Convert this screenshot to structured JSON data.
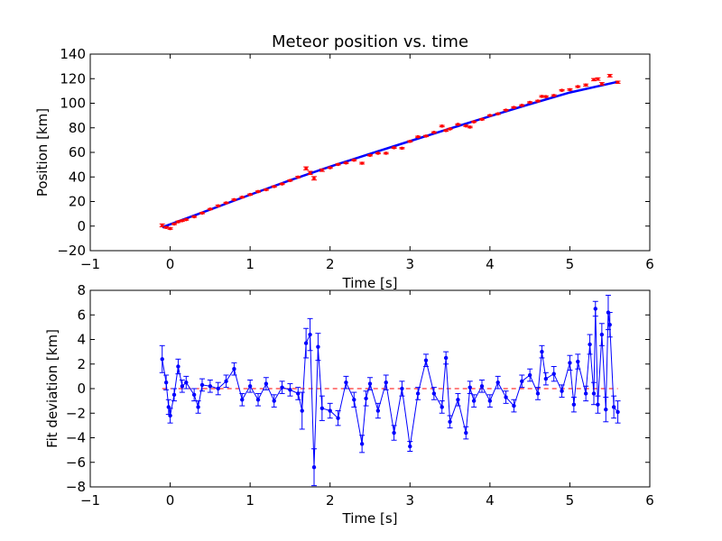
{
  "chart_data": [
    {
      "type": "scatter",
      "title": "Meteor position vs. time",
      "xlabel": "Time [s]",
      "ylabel": "Position [km]",
      "xlim": [
        -1,
        6
      ],
      "ylim": [
        -20,
        140
      ],
      "xticks": [
        -1,
        0,
        1,
        2,
        3,
        4,
        5,
        6
      ],
      "yticks": [
        -20,
        0,
        20,
        40,
        60,
        80,
        100,
        120,
        140
      ],
      "xtick_labels": [
        "−1",
        "0",
        "1",
        "2",
        "3",
        "4",
        "5",
        "6"
      ],
      "ytick_labels": [
        "−20",
        "0",
        "20",
        "40",
        "60",
        "80",
        "100",
        "120",
        "140"
      ],
      "grid": false,
      "colors": {
        "points": "#ff0000",
        "fit": "#0000ff"
      },
      "series": [
        {
          "kind": "points-with-errorbars",
          "x": [
            -0.1,
            -0.05,
            0.0,
            0.05,
            0.1,
            0.15,
            0.2,
            0.3,
            0.4,
            0.5,
            0.6,
            0.7,
            0.8,
            0.9,
            1.0,
            1.1,
            1.2,
            1.3,
            1.4,
            1.5,
            1.6,
            1.7,
            1.75,
            1.8,
            1.9,
            2.0,
            2.1,
            2.2,
            2.3,
            2.4,
            2.5,
            2.6,
            2.7,
            2.8,
            2.9,
            3.0,
            3.1,
            3.2,
            3.3,
            3.4,
            3.45,
            3.5,
            3.6,
            3.7,
            3.75,
            3.8,
            3.9,
            4.0,
            4.1,
            4.2,
            4.3,
            4.4,
            4.5,
            4.6,
            4.65,
            4.7,
            4.8,
            4.9,
            5.0,
            5.1,
            5.2,
            5.3,
            5.35,
            5.4,
            5.5,
            5.6
          ],
          "y": [
            0.6,
            -1.1,
            -2.0,
            1.7,
            3.5,
            4.4,
            5.3,
            7.6,
            10.6,
            13.8,
            16.5,
            18.9,
            21.5,
            23.5,
            25.7,
            28.1,
            29.6,
            32.2,
            34.3,
            37.1,
            39.9,
            47.0,
            43.3,
            38.9,
            45.5,
            47.5,
            50.2,
            51.4,
            53.7,
            51.2,
            57.6,
            59.3,
            59.3,
            63.8,
            63.4,
            69.0,
            72.7,
            73.3,
            76.3,
            81.4,
            77.8,
            79.1,
            82.8,
            81.6,
            80.6,
            84.9,
            86.9,
            90.1,
            91.4,
            94.4,
            96.6,
            98.3,
            100.7,
            101.8,
            105.6,
            105.4,
            106.3,
            110.5,
            111.1,
            113.5,
            114.8,
            119.2,
            119.7,
            115.8,
            122.4,
            117.1
          ],
          "err": [
            1.2,
            0.6,
            0.6,
            0.5,
            0.6,
            0.5,
            0.5,
            0.5,
            0.5,
            0.5,
            0.6,
            0.5,
            0.5,
            0.5,
            0.5,
            0.5,
            0.5,
            0.5,
            0.5,
            0.5,
            0.6,
            1.2,
            1.3,
            1.4,
            1.0,
            0.5,
            0.5,
            0.5,
            0.5,
            0.7,
            0.5,
            0.5,
            0.6,
            0.5,
            0.5,
            0.5,
            0.5,
            0.5,
            0.5,
            0.6,
            0.6,
            0.5,
            0.5,
            0.5,
            0.6,
            0.5,
            0.5,
            0.5,
            0.5,
            0.5,
            0.5,
            0.5,
            0.5,
            0.6,
            0.6,
            0.6,
            0.6,
            0.5,
            0.6,
            0.6,
            0.8,
            0.9,
            1.0,
            1.0,
            1.0,
            0.9
          ]
        },
        {
          "kind": "fit-line",
          "x": [
            -0.1,
            0.5,
            1.0,
            1.5,
            2.0,
            2.5,
            3.0,
            3.5,
            4.0,
            4.5,
            5.0,
            5.6
          ],
          "y": [
            -1.0,
            13.5,
            25.5,
            37.3,
            48.4,
            58.8,
            69.2,
            79.4,
            89.4,
            99.3,
            108.7,
            117.5
          ]
        }
      ]
    },
    {
      "type": "line",
      "xlabel": "Time [s]",
      "ylabel": "Fit deviation [km]",
      "xlim": [
        -1,
        6
      ],
      "ylim": [
        -8,
        8
      ],
      "xticks": [
        -1,
        0,
        1,
        2,
        3,
        4,
        5,
        6
      ],
      "yticks": [
        -8,
        -6,
        -4,
        -2,
        0,
        2,
        4,
        6,
        8
      ],
      "xtick_labels": [
        "−1",
        "0",
        "1",
        "2",
        "3",
        "4",
        "5",
        "6"
      ],
      "ytick_labels": [
        "−8",
        "−6",
        "−4",
        "−2",
        "0",
        "2",
        "4",
        "6",
        "8"
      ],
      "grid": false,
      "colors": {
        "line": "#0000ff",
        "zero": "#ff0000"
      },
      "zero_line": 0,
      "series": [
        {
          "kind": "line-with-errorbars",
          "x": [
            -0.1,
            -0.05,
            -0.02,
            0.0,
            0.05,
            0.1,
            0.15,
            0.2,
            0.3,
            0.35,
            0.4,
            0.5,
            0.6,
            0.7,
            0.8,
            0.9,
            1.0,
            1.1,
            1.2,
            1.3,
            1.4,
            1.5,
            1.6,
            1.65,
            1.7,
            1.75,
            1.8,
            1.85,
            1.9,
            2.0,
            2.1,
            2.2,
            2.3,
            2.4,
            2.45,
            2.5,
            2.6,
            2.7,
            2.8,
            2.9,
            3.0,
            3.1,
            3.2,
            3.3,
            3.4,
            3.45,
            3.5,
            3.6,
            3.7,
            3.75,
            3.8,
            3.9,
            4.0,
            4.1,
            4.2,
            4.3,
            4.4,
            4.5,
            4.6,
            4.65,
            4.7,
            4.8,
            4.9,
            5.0,
            5.05,
            5.1,
            5.2,
            5.25,
            5.3,
            5.32,
            5.35,
            5.4,
            5.45,
            5.48,
            5.5,
            5.55,
            5.6
          ],
          "y": [
            2.4,
            0.5,
            -1.5,
            -2.2,
            -0.5,
            1.8,
            0.2,
            0.5,
            -0.5,
            -1.5,
            0.3,
            0.2,
            0.0,
            0.6,
            1.6,
            -0.9,
            0.2,
            -0.9,
            0.4,
            -1.0,
            0.1,
            -0.1,
            -0.4,
            -1.8,
            3.7,
            4.4,
            -6.4,
            3.4,
            -1.6,
            -1.8,
            -2.4,
            0.5,
            -0.9,
            -4.5,
            -0.8,
            0.4,
            -1.8,
            0.5,
            -3.6,
            0.0,
            -4.7,
            -0.4,
            2.3,
            -0.4,
            -1.5,
            2.5,
            -2.7,
            -0.9,
            -3.6,
            0.1,
            -1.0,
            0.2,
            -1.0,
            0.5,
            -0.7,
            -1.4,
            0.6,
            1.1,
            -0.4,
            3.0,
            0.8,
            1.2,
            -0.2,
            2.1,
            -1.3,
            2.2,
            -0.4,
            3.6,
            -0.4,
            6.5,
            -1.3,
            4.4,
            -1.7,
            6.2,
            5.2,
            -1.5,
            -1.9
          ],
          "err": [
            1.1,
            0.6,
            0.6,
            0.6,
            0.5,
            0.6,
            0.5,
            0.5,
            0.5,
            0.5,
            0.5,
            0.5,
            0.5,
            0.5,
            0.5,
            0.5,
            0.5,
            0.5,
            0.5,
            0.5,
            0.5,
            0.5,
            0.5,
            1.5,
            1.2,
            1.3,
            1.5,
            1.1,
            1.0,
            0.6,
            0.6,
            0.5,
            0.6,
            0.7,
            0.6,
            0.5,
            0.6,
            0.6,
            0.6,
            0.6,
            0.4,
            0.5,
            0.5,
            0.5,
            0.5,
            0.5,
            0.5,
            0.5,
            0.5,
            0.5,
            0.5,
            0.5,
            0.5,
            0.5,
            0.5,
            0.5,
            0.5,
            0.5,
            0.5,
            0.5,
            0.5,
            0.6,
            0.5,
            0.6,
            0.6,
            0.6,
            0.6,
            0.8,
            0.9,
            0.6,
            0.7,
            0.9,
            1.0,
            1.4,
            1.0,
            0.9,
            0.9
          ]
        }
      ]
    }
  ]
}
